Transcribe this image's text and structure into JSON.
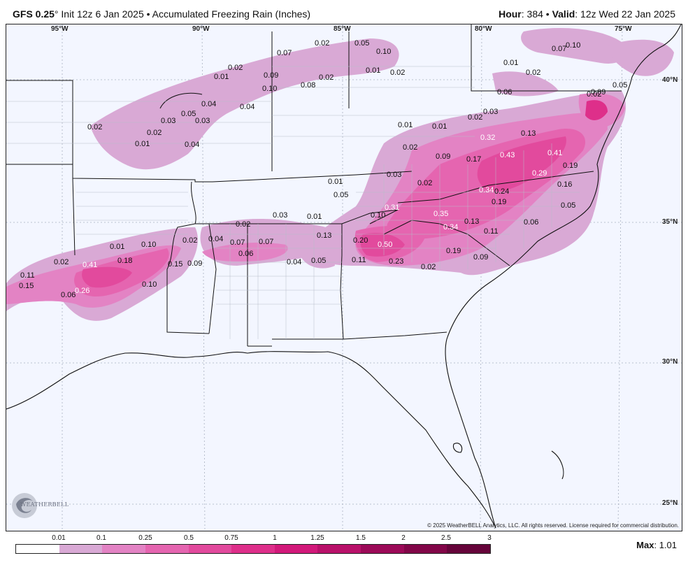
{
  "header": {
    "model": "GFS 0.25",
    "degree_sym": "°",
    "init": "Init 12z 6 Jan 2025",
    "bullet": "•",
    "product": "Accumulated Freezing Rain (Inches)",
    "hour_label": "Hour",
    "hour_value": ": 384",
    "valid_label": "Valid",
    "valid_value": ": 12z Wed 22 Jan 2025"
  },
  "map": {
    "longitudes": [
      "95°W",
      "90°W",
      "85°W",
      "80°W",
      "75°W"
    ],
    "latitudes": [
      "40°N",
      "35°N",
      "30°N",
      "25°N"
    ],
    "copyright": "© 2025 WeatherBELL Analytics, LLC. All rights reserved. License required for commercial distribution.",
    "logo_text": "WEATHERBELL",
    "colors": {
      "background": "#f3f6ff",
      "border": "#222222",
      "light": "#d9a9d5",
      "mid": "#e47cc2",
      "strong": "#e0418f",
      "heavy": "#d62079"
    },
    "value_labels": [
      {
        "text": "0.02"
      },
      {
        "text": "0.05"
      },
      {
        "text": "0.10"
      },
      {
        "text": "0.07"
      },
      {
        "text": "0.07"
      },
      {
        "text": "0.10"
      },
      {
        "text": "0.01"
      },
      {
        "text": "0.02"
      },
      {
        "text": "0.01"
      },
      {
        "text": "0.02"
      },
      {
        "text": "0.09"
      },
      {
        "text": "0.10"
      },
      {
        "text": "0.08"
      },
      {
        "text": "0.02"
      },
      {
        "text": "0.01"
      },
      {
        "text": "0.02"
      },
      {
        "text": "0.06"
      },
      {
        "text": "0.09"
      },
      {
        "text": "0.02"
      },
      {
        "text": "0.03"
      },
      {
        "text": "0.05"
      },
      {
        "text": "0.04"
      },
      {
        "text": "0.04"
      },
      {
        "text": "0.05"
      },
      {
        "text": "0.03"
      },
      {
        "text": "0.03"
      },
      {
        "text": "0.02"
      },
      {
        "text": "0.02"
      },
      {
        "text": "0.01"
      },
      {
        "text": "0.01"
      },
      {
        "text": "0.02"
      },
      {
        "text": "0.01"
      },
      {
        "text": "0.04"
      },
      {
        "text": "0.02"
      },
      {
        "text": "0.32"
      },
      {
        "text": "0.13"
      },
      {
        "text": "0.09"
      },
      {
        "text": "0.17"
      },
      {
        "text": "0.43"
      },
      {
        "text": "0.41"
      },
      {
        "text": "0.19"
      },
      {
        "text": "0.29"
      },
      {
        "text": "0.03"
      },
      {
        "text": "0.01"
      },
      {
        "text": "0.02"
      },
      {
        "text": "0.05"
      },
      {
        "text": "0.34"
      },
      {
        "text": "0.24"
      },
      {
        "text": "0.16"
      },
      {
        "text": "0.19"
      },
      {
        "text": "0.31"
      },
      {
        "text": "0.10"
      },
      {
        "text": "0.05"
      },
      {
        "text": "0.35"
      },
      {
        "text": "0.03"
      },
      {
        "text": "0.01"
      },
      {
        "text": "0.02"
      },
      {
        "text": "0.13"
      },
      {
        "text": "0.06"
      },
      {
        "text": "0.34"
      },
      {
        "text": "0.11"
      },
      {
        "text": "0.13"
      },
      {
        "text": "0.01"
      },
      {
        "text": "0.10"
      },
      {
        "text": "0.02"
      },
      {
        "text": "0.04"
      },
      {
        "text": "0.07"
      },
      {
        "text": "0.07"
      },
      {
        "text": "0.20"
      },
      {
        "text": "0.50"
      },
      {
        "text": "0.19"
      },
      {
        "text": "0.06"
      },
      {
        "text": "0.18"
      },
      {
        "text": "0.02"
      },
      {
        "text": "0.41"
      },
      {
        "text": "0.09"
      },
      {
        "text": "0.15"
      },
      {
        "text": "0.09"
      },
      {
        "text": "0.04"
      },
      {
        "text": "0.05"
      },
      {
        "text": "0.11"
      },
      {
        "text": "0.23"
      },
      {
        "text": "0.02"
      },
      {
        "text": "0.11"
      },
      {
        "text": "0.15"
      },
      {
        "text": "0.26"
      },
      {
        "text": "0.06"
      },
      {
        "text": "0.10"
      }
    ]
  },
  "legend": {
    "ticks": [
      "0.01",
      "0.1",
      "0.25",
      "0.5",
      "0.75",
      "1",
      "1.25",
      "1.5",
      "2",
      "2.5",
      "3"
    ],
    "colors": [
      "#ffffff",
      "#d9a9d5",
      "#e383c4",
      "#e565b0",
      "#e24a9d",
      "#de2f8a",
      "#d2197a",
      "#b9116a",
      "#9c0a58",
      "#820648",
      "#66043a"
    ],
    "max_label": "Max",
    "max_value": ": 1.01"
  }
}
